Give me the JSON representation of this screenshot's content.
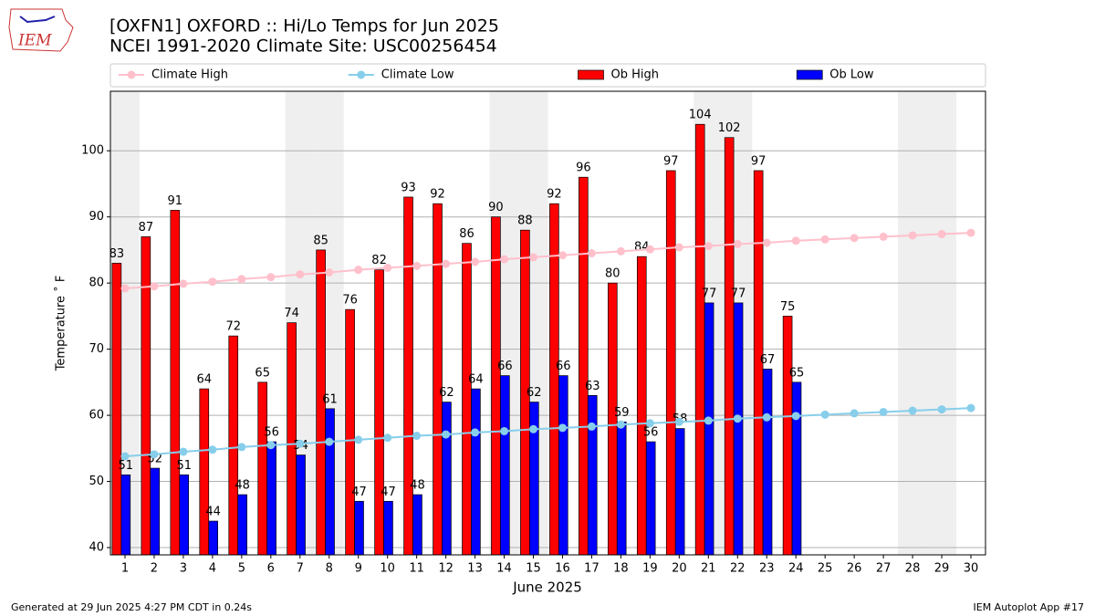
{
  "logo_text": "IEM",
  "chart_data": {
    "type": "bar",
    "title": "[OXFN1] OXFORD :: Hi/Lo Temps for Jun 2025",
    "subtitle": "NCEI 1991-2020 Climate Site: USC00256454",
    "ylabel": "Temperature ˚ F",
    "xlabel": "June 2025",
    "x": [
      1,
      2,
      3,
      4,
      5,
      6,
      7,
      8,
      9,
      10,
      11,
      12,
      13,
      14,
      15,
      16,
      17,
      18,
      19,
      20,
      21,
      22,
      23,
      24,
      25,
      26,
      27,
      28,
      29,
      30
    ],
    "xlim": [
      0.5,
      30.5
    ],
    "xticks": [
      1,
      2,
      3,
      4,
      5,
      6,
      7,
      8,
      9,
      10,
      11,
      12,
      13,
      14,
      15,
      16,
      17,
      18,
      19,
      20,
      21,
      22,
      23,
      24,
      25,
      26,
      27,
      28,
      29,
      30
    ],
    "ylim": [
      38.9,
      109
    ],
    "yticks": [
      40,
      50,
      60,
      70,
      80,
      90,
      100
    ],
    "grid": true,
    "legend": "top",
    "shaded_days": [
      1,
      7,
      8,
      14,
      15,
      21,
      22,
      28,
      29
    ],
    "series": [
      {
        "name": "Climate High",
        "type": "line",
        "color": "#ffc0cb",
        "values": [
          79.2,
          79.5,
          79.9,
          80.2,
          80.6,
          80.9,
          81.3,
          81.6,
          82.0,
          82.3,
          82.6,
          82.9,
          83.2,
          83.6,
          83.9,
          84.2,
          84.5,
          84.8,
          85.1,
          85.4,
          85.6,
          85.9,
          86.1,
          86.4,
          86.6,
          86.8,
          87.0,
          87.2,
          87.4,
          87.6
        ]
      },
      {
        "name": "Climate Low",
        "type": "line",
        "color": "#87ceeb",
        "values": [
          53.8,
          54.1,
          54.5,
          54.8,
          55.2,
          55.5,
          55.7,
          56.0,
          56.3,
          56.6,
          56.9,
          57.1,
          57.4,
          57.6,
          57.9,
          58.1,
          58.3,
          58.6,
          58.8,
          59.0,
          59.2,
          59.5,
          59.7,
          59.9,
          60.1,
          60.3,
          60.5,
          60.7,
          60.9,
          61.1
        ]
      },
      {
        "name": "Ob High",
        "type": "bar",
        "color": "#ff0000",
        "values": [
          83,
          87,
          91,
          64,
          72,
          65,
          74,
          85,
          76,
          82,
          93,
          92,
          86,
          90,
          88,
          92,
          96,
          80,
          84,
          97,
          104,
          102,
          97,
          75,
          null,
          null,
          null,
          null,
          null,
          null
        ]
      },
      {
        "name": "Ob Low",
        "type": "bar",
        "color": "#0000ff",
        "values": [
          51,
          52,
          51,
          44,
          48,
          56,
          54,
          61,
          47,
          47,
          48,
          62,
          64,
          66,
          62,
          66,
          63,
          59,
          56,
          58,
          77,
          77,
          67,
          65,
          null,
          null,
          null,
          null,
          null,
          null
        ]
      }
    ]
  },
  "footer": {
    "left": "Generated at 29 Jun 2025 4:27 PM CDT in 0.24s",
    "right": "IEM Autoplot App #17"
  }
}
